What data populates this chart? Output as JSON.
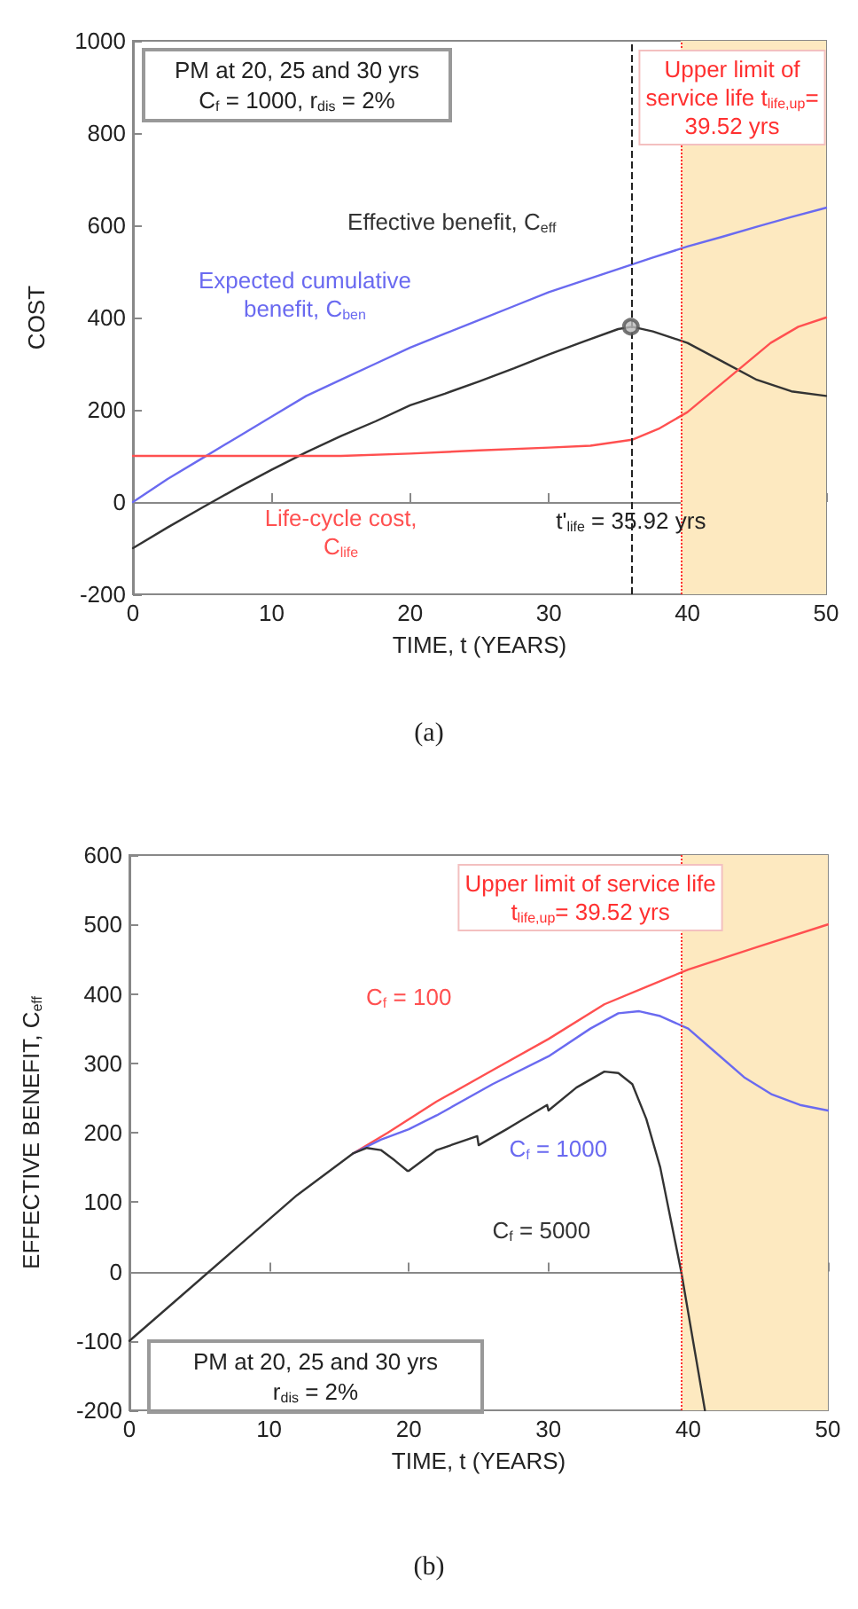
{
  "chart_data": [
    {
      "type": "line",
      "xlabel": "TIME, t (YEARS)",
      "ylabel": "COST",
      "marker": "none",
      "line_style": "solid",
      "xlim": [
        0,
        50
      ],
      "xticks": [
        0,
        10,
        20,
        30,
        40,
        50
      ],
      "ylim": [
        -200,
        1000
      ],
      "yticks": [
        -200,
        0,
        200,
        400,
        600,
        800,
        1000
      ],
      "series": [
        {
          "name": "Expected cumulative benefit, C$_{ben}$",
          "color": "#6a6af0",
          "x": [
            0,
            2.5,
            5,
            7.5,
            10,
            12.5,
            15,
            17.5,
            20,
            22.5,
            25,
            27.5,
            30,
            32.5,
            35,
            37.5,
            40,
            42.5,
            45,
            47.5,
            50
          ],
          "values": [
            0,
            50,
            95,
            140,
            185,
            230,
            265,
            300,
            335,
            365,
            395,
            425,
            455,
            480,
            505,
            530,
            554,
            575,
            597,
            618,
            638
          ]
        },
        {
          "name": "Effective benefit, C$_{eff}$",
          "color": "#333333",
          "x": [
            0,
            2.5,
            5,
            7.5,
            10,
            12.5,
            15,
            17.5,
            20,
            22.5,
            25,
            27.5,
            30,
            32.5,
            35,
            36,
            37.5,
            40,
            42.5,
            45,
            47.5,
            50
          ],
          "values": [
            -100,
            -55,
            -12,
            30,
            70,
            108,
            143,
            175,
            210,
            235,
            262,
            290,
            320,
            348,
            375,
            380,
            370,
            345,
            305,
            265,
            240,
            230
          ]
        },
        {
          "name": "Life-cycle cost, C$_{life}$",
          "color": "#ff5050",
          "x": [
            0,
            5,
            10,
            15,
            20,
            25,
            30,
            33,
            36,
            38,
            40,
            42,
            44,
            46,
            48,
            50
          ],
          "values": [
            100,
            100,
            100,
            100,
            105,
            112,
            118,
            122,
            135,
            160,
            195,
            245,
            295,
            345,
            380,
            400
          ]
        },
        {
          "type": "scatter",
          "marker": "circle",
          "color": "#555555",
          "x": [
            35.92
          ],
          "values": [
            380
          ]
        }
      ],
      "ref_lines": [
        {
          "axis": "x",
          "value": 35.92,
          "label": "t'$_{life}$ = 35.92 yrs",
          "color": "#222222",
          "line_style": "dashed"
        },
        {
          "axis": "x",
          "value": 39.52,
          "label": "Upper limit of service life t$_{life,up}$= 39.52 yrs",
          "color": "#ff3030",
          "line_style": "dotted"
        }
      ],
      "bands": [
        {
          "axis": "x",
          "from": 39.52,
          "to": 50,
          "color": "#fde9c0"
        }
      ],
      "annotations": [
        "PM at 20, 25 and 30 yrs\nC$_{f}$ = 1000, r$_{dis}$ = 2%",
        "(a)"
      ]
    },
    {
      "type": "line",
      "xlabel": "TIME, t (YEARS)",
      "ylabel": "EFFECTIVE BENEFIT, C$_{eff}$",
      "marker": "none",
      "line_style": "solid",
      "xlim": [
        0,
        50
      ],
      "xticks": [
        0,
        10,
        20,
        30,
        40,
        50
      ],
      "ylim": [
        -200,
        600
      ],
      "yticks": [
        -200,
        -100,
        0,
        100,
        200,
        300,
        400,
        500,
        600
      ],
      "series": [
        {
          "name": "C$_{f}$ = 100",
          "color": "#ff5050",
          "x": [
            16,
            18.5,
            22,
            26,
            30,
            34,
            37,
            40,
            45,
            50
          ],
          "values": [
            170,
            200,
            245,
            290,
            335,
            385,
            410,
            435,
            468,
            500
          ]
        },
        {
          "name": "C$_{f}$ = 1000",
          "color": "#6a6af0",
          "x": [
            16,
            18,
            20,
            22,
            26,
            30,
            33,
            35,
            36.5,
            38,
            40,
            42,
            44,
            46,
            48,
            50
          ],
          "values": [
            170,
            190,
            205,
            225,
            270,
            310,
            350,
            372,
            375,
            368,
            350,
            315,
            280,
            255,
            240,
            232
          ]
        },
        {
          "name": "C$_{f}$ = 5000",
          "color": "#333333",
          "x": [
            0,
            4,
            8,
            12,
            16,
            17,
            18,
            19,
            19.9,
            20,
            22,
            24.9,
            25,
            27,
            29.9,
            30,
            32,
            34,
            35,
            36,
            37,
            38,
            39.5,
            41.2
          ],
          "values": [
            -100,
            -30,
            40,
            110,
            170,
            178,
            175,
            160,
            145,
            145,
            175,
            195,
            182,
            205,
            240,
            232,
            265,
            288,
            286,
            270,
            220,
            150,
            0,
            -200
          ]
        }
      ],
      "ref_lines": [
        {
          "axis": "x",
          "value": 39.52,
          "label": "Upper limit of service life t$_{life,up}$= 39.52 yrs",
          "color": "#ff3030",
          "line_style": "dotted"
        }
      ],
      "bands": [
        {
          "axis": "x",
          "from": 39.52,
          "to": 50,
          "color": "#fde9c0"
        }
      ],
      "annotations": [
        "PM at 20, 25 and 30 yrs\nr$_{dis}$ = 2%",
        "(b)"
      ]
    }
  ]
}
